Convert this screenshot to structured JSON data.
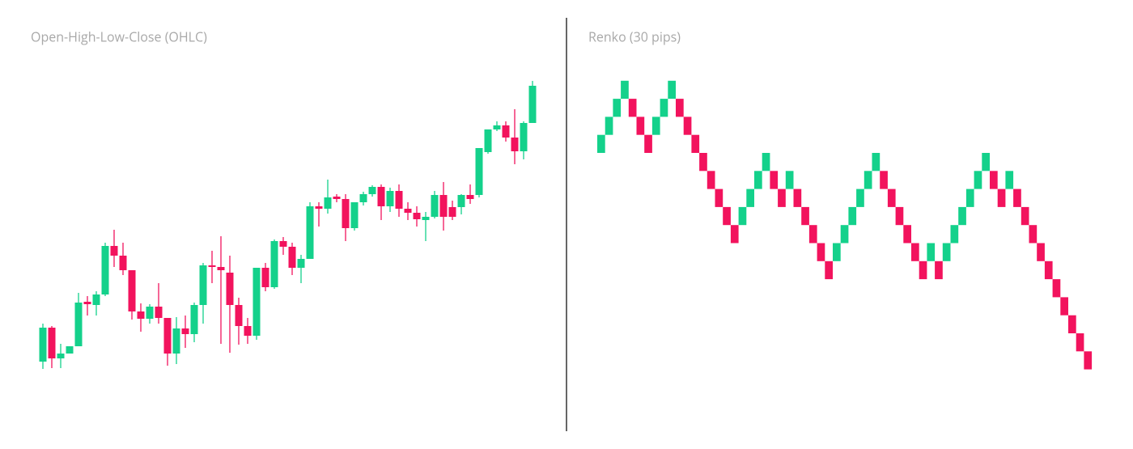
{
  "chart_data": [
    {
      "type": "candlestick",
      "title": "Open-High-Low-Close (OHLC)",
      "up_color": "#14d18b",
      "down_color": "#f2135d",
      "open": [
        53,
        95,
        57,
        63,
        72,
        127,
        123,
        136,
        196,
        184,
        166,
        115,
        106,
        121,
        107,
        63,
        94,
        87,
        123,
        172,
        170,
        163,
        123,
        97,
        85,
        169,
        145,
        202,
        195,
        169,
        180,
        245,
        242,
        257,
        254,
        218,
        250,
        260,
        269,
        245,
        264,
        242,
        237,
        228,
        232,
        259,
        244,
        244,
        259,
        259,
        312,
        340,
        345,
        330,
        313,
        348
      ],
      "high": [
        100,
        97,
        75,
        72,
        138,
        134,
        140,
        200,
        216,
        200,
        166,
        125,
        124,
        150,
        107,
        108,
        110,
        126,
        175,
        190,
        208,
        184,
        132,
        107,
        169,
        175,
        204,
        207,
        200,
        185,
        250,
        250,
        278,
        260,
        260,
        250,
        263,
        271,
        272,
        268,
        272,
        250,
        245,
        238,
        264,
        275,
        252,
        260,
        272,
        317,
        340,
        350,
        350,
        365,
        350,
        400
      ],
      "low": [
        44,
        45,
        45,
        63,
        72,
        110,
        110,
        134,
        170,
        160,
        105,
        90,
        100,
        100,
        48,
        50,
        70,
        77,
        100,
        150,
        75,
        64,
        74,
        75,
        80,
        140,
        143,
        185,
        160,
        150,
        180,
        220,
        236,
        250,
        202,
        215,
        246,
        257,
        228,
        238,
        232,
        228,
        220,
        202,
        230,
        215,
        228,
        235,
        248,
        256,
        310,
        338,
        325,
        297,
        303,
        348
      ],
      "close": [
        95,
        57,
        63,
        72,
        126,
        124,
        136,
        196,
        184,
        166,
        115,
        106,
        121,
        107,
        63,
        94,
        87,
        123,
        172,
        170,
        166,
        123,
        97,
        85,
        169,
        145,
        202,
        195,
        169,
        180,
        245,
        242,
        256,
        254,
        218,
        250,
        260,
        269,
        245,
        264,
        242,
        237,
        229,
        232,
        259,
        232,
        232,
        259,
        254,
        317,
        340,
        345,
        330,
        313,
        348,
        394
      ]
    },
    {
      "type": "renko",
      "title": "Renko (30 pips)",
      "up_color": "#14d18b",
      "down_color": "#f2135d",
      "open": [
        0,
        30,
        60,
        90,
        90,
        60,
        30,
        30,
        60,
        90,
        90,
        60,
        30,
        0,
        -30,
        -60,
        -90,
        -120,
        -120,
        -90,
        -60,
        -30,
        -30,
        -60,
        -60,
        -60,
        -90,
        -120,
        -150,
        -180,
        -180,
        -150,
        -120,
        -90,
        -60,
        -30,
        -30,
        -60,
        -90,
        -120,
        -150,
        -180,
        -180,
        -180,
        -180,
        -150,
        -120,
        -90,
        -60,
        -30,
        -30,
        -60,
        -60,
        -60,
        -90,
        -120,
        -150,
        -180,
        -210,
        -240,
        -270,
        -300,
        -330
      ],
      "close": [
        30,
        60,
        90,
        120,
        60,
        30,
        0,
        60,
        90,
        120,
        60,
        30,
        0,
        -30,
        -60,
        -90,
        -120,
        -150,
        -90,
        -60,
        -30,
        0,
        -60,
        -90,
        -30,
        -90,
        -120,
        -150,
        -180,
        -210,
        -150,
        -120,
        -90,
        -60,
        -30,
        0,
        -60,
        -90,
        -120,
        -150,
        -180,
        -210,
        -150,
        -210,
        -150,
        -120,
        -90,
        -60,
        -30,
        0,
        -60,
        -90,
        -30,
        -90,
        -120,
        -150,
        -180,
        -210,
        -240,
        -270,
        -300,
        -330,
        -360
      ]
    }
  ]
}
